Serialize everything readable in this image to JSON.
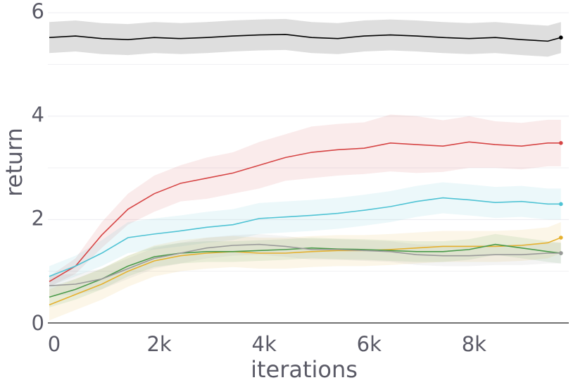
{
  "chart_data": {
    "type": "line",
    "x_label": "iterations",
    "y_label": "return",
    "x": [
      0,
      500,
      1000,
      1500,
      2000,
      2500,
      3000,
      3500,
      4000,
      4500,
      5000,
      5500,
      6000,
      6500,
      7000,
      7500,
      8000,
      8500,
      9000,
      9500,
      9750
    ],
    "xlim": [
      0,
      9900
    ],
    "ylim": [
      0,
      6.1
    ],
    "xticks": [
      {
        "value": 0,
        "label": "0"
      },
      {
        "value": 2000,
        "label": "2k"
      },
      {
        "value": 4000,
        "label": "4k"
      },
      {
        "value": 6000,
        "label": "6k"
      },
      {
        "value": 8000,
        "label": "8k"
      }
    ],
    "yticks": [
      0,
      2,
      4,
      6
    ],
    "minor_yticks": [
      1,
      3,
      5
    ],
    "grid": true,
    "series": [
      {
        "color": "#000000",
        "values": [
          5.52,
          5.55,
          5.5,
          5.48,
          5.52,
          5.5,
          5.52,
          5.55,
          5.57,
          5.58,
          5.52,
          5.5,
          5.55,
          5.57,
          5.55,
          5.52,
          5.5,
          5.52,
          5.48,
          5.45,
          5.52
        ],
        "lower": [
          5.22,
          5.25,
          5.2,
          5.18,
          5.22,
          5.2,
          5.22,
          5.25,
          5.27,
          5.28,
          5.22,
          5.2,
          5.25,
          5.27,
          5.25,
          5.22,
          5.2,
          5.22,
          5.18,
          5.15,
          5.22
        ],
        "upper": [
          5.82,
          5.85,
          5.8,
          5.78,
          5.82,
          5.8,
          5.82,
          5.85,
          5.87,
          5.88,
          5.82,
          5.8,
          5.85,
          5.87,
          5.85,
          5.82,
          5.8,
          5.82,
          5.78,
          5.75,
          5.82
        ]
      },
      {
        "color": "#d64545",
        "values": [
          0.8,
          1.1,
          1.7,
          2.2,
          2.5,
          2.7,
          2.8,
          2.9,
          3.05,
          3.2,
          3.3,
          3.35,
          3.38,
          3.48,
          3.45,
          3.42,
          3.5,
          3.45,
          3.42,
          3.48,
          3.48
        ],
        "lower": [
          0.7,
          0.95,
          1.45,
          1.9,
          2.15,
          2.35,
          2.4,
          2.5,
          2.6,
          2.75,
          2.8,
          2.85,
          2.88,
          2.93,
          2.9,
          2.92,
          3.0,
          3.0,
          2.97,
          3.03,
          3.03
        ],
        "upper": [
          0.9,
          1.25,
          1.95,
          2.5,
          2.85,
          3.05,
          3.2,
          3.3,
          3.5,
          3.65,
          3.8,
          3.85,
          3.88,
          4.03,
          4.0,
          3.92,
          4.0,
          3.9,
          3.87,
          3.93,
          3.93
        ]
      },
      {
        "color": "#4fc3d4",
        "values": [
          0.9,
          1.1,
          1.35,
          1.65,
          1.72,
          1.78,
          1.85,
          1.9,
          2.02,
          2.05,
          2.08,
          2.12,
          2.18,
          2.25,
          2.35,
          2.42,
          2.38,
          2.33,
          2.35,
          2.3,
          2.3
        ],
        "lower": [
          0.7,
          0.9,
          1.1,
          1.35,
          1.42,
          1.48,
          1.55,
          1.6,
          1.72,
          1.75,
          1.78,
          1.82,
          1.88,
          1.95,
          2.05,
          2.12,
          2.08,
          2.03,
          2.05,
          2.0,
          2.0
        ],
        "upper": [
          1.1,
          1.3,
          1.6,
          1.95,
          2.02,
          2.08,
          2.15,
          2.2,
          2.32,
          2.35,
          2.38,
          2.42,
          2.48,
          2.55,
          2.65,
          2.72,
          2.68,
          2.63,
          2.65,
          2.6,
          2.6
        ]
      },
      {
        "color": "#e5b02e",
        "values": [
          0.35,
          0.55,
          0.75,
          1.0,
          1.2,
          1.3,
          1.35,
          1.38,
          1.35,
          1.35,
          1.38,
          1.4,
          1.4,
          1.42,
          1.45,
          1.48,
          1.48,
          1.48,
          1.5,
          1.55,
          1.65
        ],
        "lower": [
          0.05,
          0.25,
          0.45,
          0.7,
          0.9,
          1.0,
          1.05,
          1.08,
          1.05,
          1.05,
          1.08,
          1.1,
          1.1,
          1.12,
          1.15,
          1.18,
          1.18,
          1.18,
          1.2,
          1.25,
          1.35
        ],
        "upper": [
          0.65,
          0.85,
          1.05,
          1.3,
          1.5,
          1.6,
          1.65,
          1.68,
          1.65,
          1.65,
          1.68,
          1.7,
          1.7,
          1.72,
          1.75,
          1.78,
          1.78,
          1.78,
          1.8,
          1.85,
          1.95
        ]
      },
      {
        "color": "#4a9a4a",
        "values": [
          0.5,
          0.65,
          0.85,
          1.1,
          1.28,
          1.35,
          1.38,
          1.38,
          1.4,
          1.42,
          1.45,
          1.43,
          1.42,
          1.4,
          1.38,
          1.38,
          1.42,
          1.52,
          1.45,
          1.38,
          1.35
        ],
        "lower": [
          0.3,
          0.45,
          0.65,
          0.9,
          1.08,
          1.15,
          1.18,
          1.18,
          1.2,
          1.22,
          1.25,
          1.23,
          1.22,
          1.2,
          1.18,
          1.18,
          1.22,
          1.32,
          1.25,
          1.18,
          1.15
        ],
        "upper": [
          0.7,
          0.85,
          1.05,
          1.3,
          1.48,
          1.55,
          1.58,
          1.58,
          1.6,
          1.62,
          1.65,
          1.63,
          1.62,
          1.6,
          1.58,
          1.58,
          1.62,
          1.72,
          1.65,
          1.58,
          1.55
        ]
      },
      {
        "color": "#9a9a9a",
        "values": [
          0.72,
          0.75,
          0.85,
          1.05,
          1.25,
          1.35,
          1.45,
          1.5,
          1.52,
          1.48,
          1.42,
          1.42,
          1.4,
          1.38,
          1.32,
          1.3,
          1.3,
          1.32,
          1.32,
          1.35,
          1.35
        ],
        "lower": [
          0.52,
          0.55,
          0.65,
          0.85,
          1.05,
          1.15,
          1.25,
          1.3,
          1.32,
          1.28,
          1.22,
          1.22,
          1.2,
          1.18,
          1.12,
          1.1,
          1.1,
          1.12,
          1.12,
          1.15,
          1.15
        ],
        "upper": [
          0.92,
          0.95,
          1.05,
          1.25,
          1.45,
          1.55,
          1.65,
          1.7,
          1.72,
          1.68,
          1.62,
          1.62,
          1.6,
          1.58,
          1.52,
          1.5,
          1.5,
          1.52,
          1.52,
          1.55,
          1.55
        ]
      }
    ]
  }
}
